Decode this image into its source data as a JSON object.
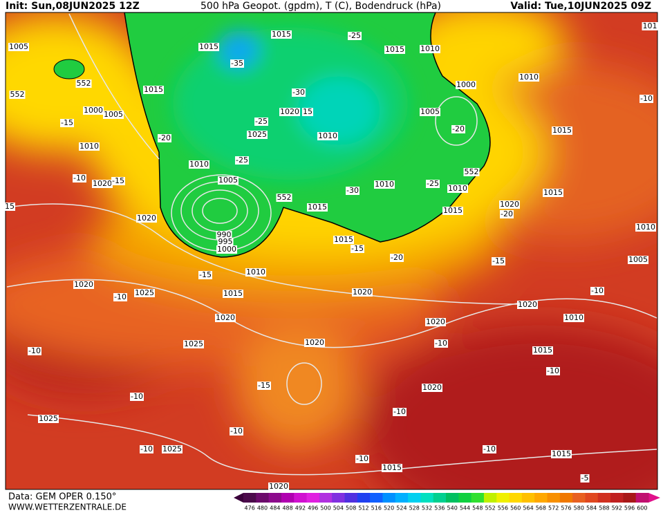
{
  "header": {
    "init": "Init: Sun,08JUN2025 12Z",
    "title": "500 hPa Geopot. (gpdm), T (C), Bodendruck (hPa)",
    "valid": "Valid: Tue,10JUN2025 09Z"
  },
  "footer": {
    "data": "Data: GEM OPER 0.150°",
    "site": "WWW.WETTERZENTRALE.DE"
  },
  "colorbar": {
    "labels": [
      "476",
      "480",
      "484",
      "488",
      "492",
      "496",
      "500",
      "504",
      "508",
      "512",
      "516",
      "520",
      "524",
      "528",
      "532",
      "536",
      "540",
      "544",
      "548",
      "552",
      "556",
      "560",
      "564",
      "568",
      "572",
      "576",
      "580",
      "584",
      "588",
      "592",
      "596",
      "600"
    ]
  },
  "map": {
    "labels": [
      "1005",
      "552",
      "552",
      "1000",
      "1005",
      "-15",
      "1010",
      "-20",
      "1015",
      "1015",
      "-35",
      "-25",
      "1015",
      "1010",
      "1015",
      "-30",
      "1020",
      "15",
      "-25",
      "1025",
      "1010",
      "1000",
      "1005",
      "-20",
      "1010",
      "-10",
      "1015",
      "1010",
      "-25",
      "1005",
      "1020",
      "-10",
      "-15",
      "15",
      "552",
      "1010",
      "-30",
      "-25",
      "1010",
      "552",
      "1015",
      "1015",
      "1020",
      "-20",
      "1015",
      "1020",
      "990",
      "995",
      "1000",
      "1015",
      "-15",
      "-20",
      "-15",
      "1010",
      "1005",
      "1010",
      "-15",
      "1020",
      "-10",
      "1025",
      "1015",
      "1020",
      "-10",
      "1020",
      "1010",
      "1020",
      "1020",
      "1025",
      "1020",
      "-10",
      "1015",
      "-10",
      "-10",
      "-15",
      "1020",
      "-10",
      "1025",
      "-10",
      "-10",
      "-10",
      "1025",
      "-10",
      "1015",
      "-10",
      "1015",
      "1020",
      "-5",
      "101"
    ]
  }
}
